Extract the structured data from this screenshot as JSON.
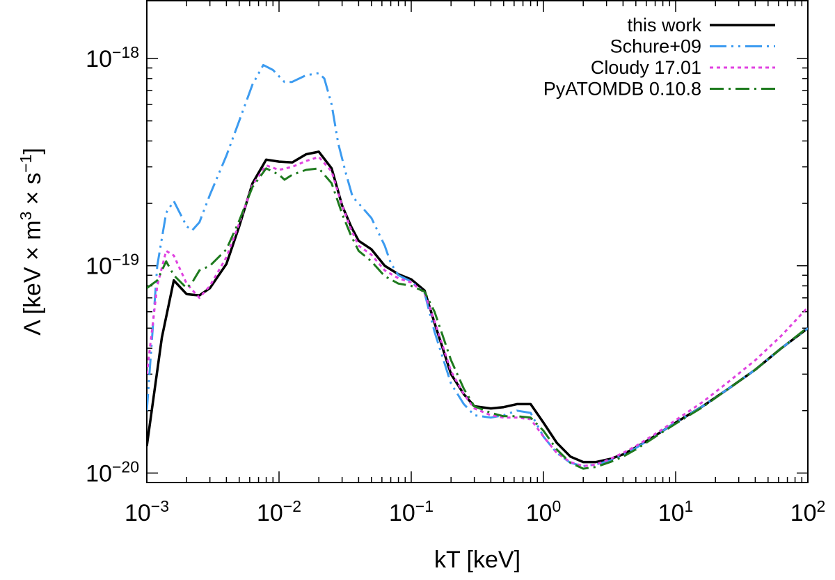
{
  "chart_data": {
    "type": "line",
    "x_scale": "log",
    "y_scale": "log",
    "xlim": [
      0.001,
      100
    ],
    "ylim": [
      9e-21,
      1.9e-18
    ],
    "xlabel": "kT [keV]",
    "ylabel": {
      "base": "Λ [keV × m",
      "sup1": "3",
      "mid": " × s",
      "sup2": "−1",
      "end": "]"
    },
    "x_ticks": [
      {
        "value": 0.001,
        "base": "10",
        "exp": "−3"
      },
      {
        "value": 0.01,
        "base": "10",
        "exp": "−2"
      },
      {
        "value": 0.1,
        "base": "10",
        "exp": "−1"
      },
      {
        "value": 1,
        "base": "10",
        "exp": "0"
      },
      {
        "value": 10,
        "base": "10",
        "exp": "1"
      },
      {
        "value": 100,
        "base": "10",
        "exp": "2"
      }
    ],
    "y_ticks": [
      {
        "value": 1e-20,
        "base": "10",
        "exp": "−20"
      },
      {
        "value": 1e-19,
        "base": "10",
        "exp": "−19"
      },
      {
        "value": 1e-18,
        "base": "10",
        "exp": "−18"
      }
    ],
    "legend_position": "top-right",
    "series": [
      {
        "name": "this work",
        "color": "#000000",
        "style": "solid",
        "points": [
          [
            0.001,
            1.35e-20
          ],
          [
            0.0013,
            4.5e-20
          ],
          [
            0.0016,
            8.5e-20
          ],
          [
            0.002,
            7.3e-20
          ],
          [
            0.0025,
            7.2e-20
          ],
          [
            0.003,
            7.8e-20
          ],
          [
            0.004,
            1.02e-19
          ],
          [
            0.005,
            1.55e-19
          ],
          [
            0.0063,
            2.5e-19
          ],
          [
            0.008,
            3.25e-19
          ],
          [
            0.01,
            3.18e-19
          ],
          [
            0.0126,
            3.15e-19
          ],
          [
            0.016,
            3.45e-19
          ],
          [
            0.02,
            3.55e-19
          ],
          [
            0.025,
            2.95e-19
          ],
          [
            0.03,
            1.95e-19
          ],
          [
            0.035,
            1.55e-19
          ],
          [
            0.04,
            1.32e-19
          ],
          [
            0.05,
            1.2e-19
          ],
          [
            0.063,
            1e-19
          ],
          [
            0.08,
            9.1e-20
          ],
          [
            0.1,
            8.6e-20
          ],
          [
            0.126,
            7.6e-20
          ],
          [
            0.15,
            5.3e-20
          ],
          [
            0.2,
            3e-20
          ],
          [
            0.25,
            2.4e-20
          ],
          [
            0.3,
            2.1e-20
          ],
          [
            0.4,
            2.05e-20
          ],
          [
            0.5,
            2.08e-20
          ],
          [
            0.63,
            2.15e-20
          ],
          [
            0.8,
            2.15e-20
          ],
          [
            1.0,
            1.75e-20
          ],
          [
            1.26,
            1.4e-20
          ],
          [
            1.6,
            1.2e-20
          ],
          [
            2.0,
            1.13e-20
          ],
          [
            2.5,
            1.13e-20
          ],
          [
            3.2,
            1.17e-20
          ],
          [
            4.0,
            1.23e-20
          ],
          [
            5.0,
            1.33e-20
          ],
          [
            6.3,
            1.45e-20
          ],
          [
            8.0,
            1.6e-20
          ],
          [
            10,
            1.75e-20
          ],
          [
            16,
            2.1e-20
          ],
          [
            25,
            2.55e-20
          ],
          [
            40,
            3.15e-20
          ],
          [
            63,
            4e-20
          ],
          [
            100,
            5e-20
          ]
        ]
      },
      {
        "name": "Schure+09",
        "color": "#3c9bf0",
        "style": "dash-dot-dot",
        "points": [
          [
            0.001,
            2e-20
          ],
          [
            0.0012,
            1e-19
          ],
          [
            0.0014,
            1.8e-19
          ],
          [
            0.0016,
            2.05e-19
          ],
          [
            0.002,
            1.55e-19
          ],
          [
            0.0022,
            1.48e-19
          ],
          [
            0.0025,
            1.62e-19
          ],
          [
            0.003,
            2.2e-19
          ],
          [
            0.004,
            3.4e-19
          ],
          [
            0.005,
            5e-19
          ],
          [
            0.0063,
            7.5e-19
          ],
          [
            0.0076,
            9.3e-19
          ],
          [
            0.009,
            8.8e-19
          ],
          [
            0.011,
            7.7e-19
          ],
          [
            0.0125,
            7.7e-19
          ],
          [
            0.016,
            8.3e-19
          ],
          [
            0.02,
            8.5e-19
          ],
          [
            0.022,
            8e-19
          ],
          [
            0.025,
            6e-19
          ],
          [
            0.028,
            3.9e-19
          ],
          [
            0.032,
            2.8e-19
          ],
          [
            0.036,
            2.15e-19
          ],
          [
            0.04,
            2e-19
          ],
          [
            0.05,
            1.7e-19
          ],
          [
            0.063,
            1.25e-19
          ],
          [
            0.07,
            1.03e-19
          ],
          [
            0.08,
            9e-20
          ],
          [
            0.1,
            8.4e-20
          ],
          [
            0.126,
            7.4e-20
          ],
          [
            0.15,
            4.8e-20
          ],
          [
            0.2,
            2.7e-20
          ],
          [
            0.25,
            2.15e-20
          ],
          [
            0.3,
            1.9e-20
          ],
          [
            0.4,
            1.85e-20
          ],
          [
            0.5,
            1.9e-20
          ],
          [
            0.63,
            2e-20
          ],
          [
            0.8,
            1.95e-20
          ],
          [
            1.0,
            1.5e-20
          ],
          [
            1.26,
            1.25e-20
          ],
          [
            1.6,
            1.12e-20
          ],
          [
            2.0,
            1.08e-20
          ],
          [
            2.5,
            1.1e-20
          ],
          [
            3.2,
            1.15e-20
          ],
          [
            4.0,
            1.22e-20
          ],
          [
            5.0,
            1.32e-20
          ],
          [
            6.3,
            1.45e-20
          ],
          [
            8.0,
            1.6e-20
          ],
          [
            10,
            1.75e-20
          ],
          [
            16,
            2.1e-20
          ],
          [
            25,
            2.55e-20
          ],
          [
            40,
            3.15e-20
          ],
          [
            63,
            4e-20
          ],
          [
            100,
            5e-20
          ]
        ]
      },
      {
        "name": "Cloudy 17.01",
        "color": "#e042e0",
        "style": "dotted",
        "points": [
          [
            0.001,
            3e-20
          ],
          [
            0.0012,
            8e-20
          ],
          [
            0.0014,
            1.18e-19
          ],
          [
            0.0016,
            1.12e-19
          ],
          [
            0.002,
            8.2e-20
          ],
          [
            0.0025,
            7e-20
          ],
          [
            0.003,
            8e-20
          ],
          [
            0.004,
            1.1e-19
          ],
          [
            0.005,
            1.6e-19
          ],
          [
            0.0063,
            2.45e-19
          ],
          [
            0.008,
            3.05e-19
          ],
          [
            0.01,
            2.9e-19
          ],
          [
            0.0126,
            3e-19
          ],
          [
            0.016,
            3.2e-19
          ],
          [
            0.02,
            3.35e-19
          ],
          [
            0.025,
            2.85e-19
          ],
          [
            0.03,
            1.95e-19
          ],
          [
            0.035,
            1.5e-19
          ],
          [
            0.04,
            1.25e-19
          ],
          [
            0.05,
            1.13e-19
          ],
          [
            0.063,
            9.5e-20
          ],
          [
            0.08,
            8.7e-20
          ],
          [
            0.1,
            8.3e-20
          ],
          [
            0.126,
            7.4e-20
          ],
          [
            0.15,
            5.4e-20
          ],
          [
            0.2,
            3.1e-20
          ],
          [
            0.25,
            2.4e-20
          ],
          [
            0.3,
            2.05e-20
          ],
          [
            0.4,
            1.9e-20
          ],
          [
            0.5,
            1.85e-20
          ],
          [
            0.63,
            1.85e-20
          ],
          [
            0.8,
            1.82e-20
          ],
          [
            1.0,
            1.5e-20
          ],
          [
            1.26,
            1.25e-20
          ],
          [
            1.6,
            1.13e-20
          ],
          [
            2.0,
            1.08e-20
          ],
          [
            2.5,
            1.1e-20
          ],
          [
            3.2,
            1.17e-20
          ],
          [
            4.0,
            1.25e-20
          ],
          [
            5.0,
            1.35e-20
          ],
          [
            6.3,
            1.48e-20
          ],
          [
            8.0,
            1.63e-20
          ],
          [
            10,
            1.8e-20
          ],
          [
            16,
            2.2e-20
          ],
          [
            25,
            2.75e-20
          ],
          [
            40,
            3.5e-20
          ],
          [
            63,
            4.6e-20
          ],
          [
            100,
            6.3e-20
          ]
        ]
      },
      {
        "name": "PyATOMDB 0.10.8",
        "color": "#1e7a1e",
        "style": "dash-dot",
        "points": [
          [
            0.001,
            7.8e-20
          ],
          [
            0.0012,
            8.5e-20
          ],
          [
            0.0014,
            1.05e-19
          ],
          [
            0.0016,
            9e-20
          ],
          [
            0.002,
            7.8e-20
          ],
          [
            0.0022,
            8.3e-20
          ],
          [
            0.0025,
            9.5e-20
          ],
          [
            0.003,
            1e-19
          ],
          [
            0.004,
            1.2e-19
          ],
          [
            0.005,
            1.65e-19
          ],
          [
            0.0063,
            2.4e-19
          ],
          [
            0.008,
            2.95e-19
          ],
          [
            0.01,
            2.75e-19
          ],
          [
            0.011,
            2.6e-19
          ],
          [
            0.0126,
            2.75e-19
          ],
          [
            0.016,
            2.9e-19
          ],
          [
            0.02,
            2.95e-19
          ],
          [
            0.025,
            2.5e-19
          ],
          [
            0.03,
            1.78e-19
          ],
          [
            0.035,
            1.4e-19
          ],
          [
            0.04,
            1.18e-19
          ],
          [
            0.05,
            1.05e-19
          ],
          [
            0.063,
            8.9e-20
          ],
          [
            0.08,
            8.2e-20
          ],
          [
            0.1,
            8e-20
          ],
          [
            0.126,
            7.5e-20
          ],
          [
            0.15,
            6e-20
          ],
          [
            0.2,
            3.5e-20
          ],
          [
            0.25,
            2.55e-20
          ],
          [
            0.3,
            2.1e-20
          ],
          [
            0.4,
            1.95e-20
          ],
          [
            0.5,
            1.88e-20
          ],
          [
            0.63,
            1.88e-20
          ],
          [
            0.8,
            1.85e-20
          ],
          [
            1.0,
            1.6e-20
          ],
          [
            1.26,
            1.3e-20
          ],
          [
            1.6,
            1.12e-20
          ],
          [
            2.0,
            1.05e-20
          ],
          [
            2.5,
            1.07e-20
          ],
          [
            3.2,
            1.13e-20
          ],
          [
            4.0,
            1.2e-20
          ],
          [
            5.0,
            1.3e-20
          ],
          [
            6.3,
            1.43e-20
          ],
          [
            8.0,
            1.58e-20
          ],
          [
            10,
            1.73e-20
          ],
          [
            16,
            2.08e-20
          ],
          [
            25,
            2.55e-20
          ],
          [
            40,
            3.15e-20
          ],
          [
            63,
            4e-20
          ],
          [
            100,
            5.05e-20
          ]
        ]
      }
    ]
  }
}
